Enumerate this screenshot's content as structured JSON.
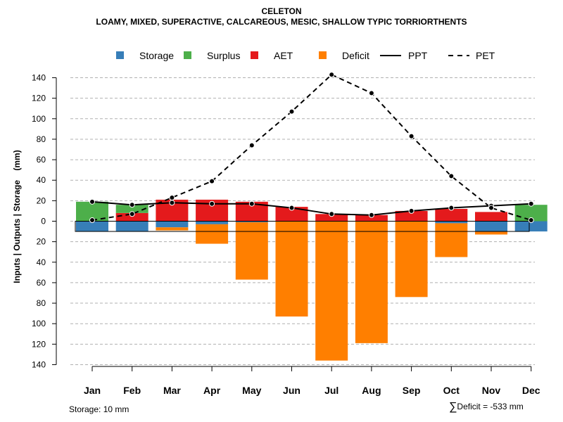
{
  "chart_data": {
    "type": "bar",
    "title": "CELETON",
    "subtitle": "LOAMY, MIXED, SUPERACTIVE, CALCAREOUS, MESIC, SHALLOW TYPIC TORRIORTHENTS",
    "ylabel": "Inputs | Outputs | Storage    (mm)",
    "xlabel": "",
    "categories": [
      "Jan",
      "Feb",
      "Mar",
      "Apr",
      "May",
      "Jun",
      "Jul",
      "Aug",
      "Sep",
      "Oct",
      "Nov",
      "Dec"
    ],
    "ylim": [
      -140,
      145
    ],
    "y_ticks": [
      140,
      120,
      100,
      80,
      60,
      40,
      20,
      0,
      -20,
      -40,
      -60,
      -80,
      -100,
      -120,
      -140
    ],
    "y_tick_labels": [
      "140",
      "120",
      "100",
      "80",
      "60",
      "40",
      "20",
      "0",
      "20",
      "40",
      "60",
      "80",
      "100",
      "120",
      "140"
    ],
    "grid": true,
    "legend_position": "top",
    "legend": [
      {
        "name": "Storage",
        "kind": "box",
        "color": "#377EB8"
      },
      {
        "name": "Surplus",
        "kind": "box",
        "color": "#4DAF4A"
      },
      {
        "name": "AET",
        "kind": "box",
        "color": "#E41A1C"
      },
      {
        "name": "Deficit",
        "kind": "box",
        "color": "#FF7F00"
      },
      {
        "name": "PPT",
        "kind": "solid-line",
        "color": "#000000"
      },
      {
        "name": "PET",
        "kind": "dashed-line",
        "color": "#000000"
      }
    ],
    "series": [
      {
        "name": "AET",
        "kind": "bar-up",
        "color": "#E41A1C",
        "values": [
          0,
          8,
          21,
          21,
          19,
          14,
          7,
          6,
          10,
          12,
          9,
          0
        ]
      },
      {
        "name": "Surplus",
        "kind": "bar-up",
        "color": "#4DAF4A",
        "values": [
          19,
          8,
          0,
          0,
          0,
          0,
          0,
          0,
          0,
          0,
          0,
          16
        ]
      },
      {
        "name": "Storage",
        "kind": "bar-down",
        "color": "#377EB8",
        "values": [
          -10,
          -10,
          -6,
          -3,
          -1,
          0,
          0,
          0,
          0,
          -2,
          -10,
          -10
        ]
      },
      {
        "name": "Deficit",
        "kind": "bar-down",
        "color": "#FF7F00",
        "values": [
          0,
          0,
          -3,
          -19,
          -56,
          -93,
          -136,
          -119,
          -74,
          -33,
          -3,
          0
        ]
      },
      {
        "name": "PPT",
        "kind": "line",
        "color": "#000000",
        "values": [
          19,
          16,
          18,
          17,
          17,
          13,
          7,
          6,
          10,
          13,
          15,
          17
        ]
      },
      {
        "name": "PET",
        "kind": "dashed-line",
        "color": "#000000",
        "values": [
          1,
          7,
          23,
          39,
          74,
          107,
          143,
          125,
          83,
          44,
          13,
          1
        ]
      }
    ],
    "storage_capacity": 10,
    "annotations": {
      "storage_note": "Storage: 10 mm",
      "deficit_sigma": "∑",
      "deficit_note": "Deficit = -533 mm"
    }
  }
}
